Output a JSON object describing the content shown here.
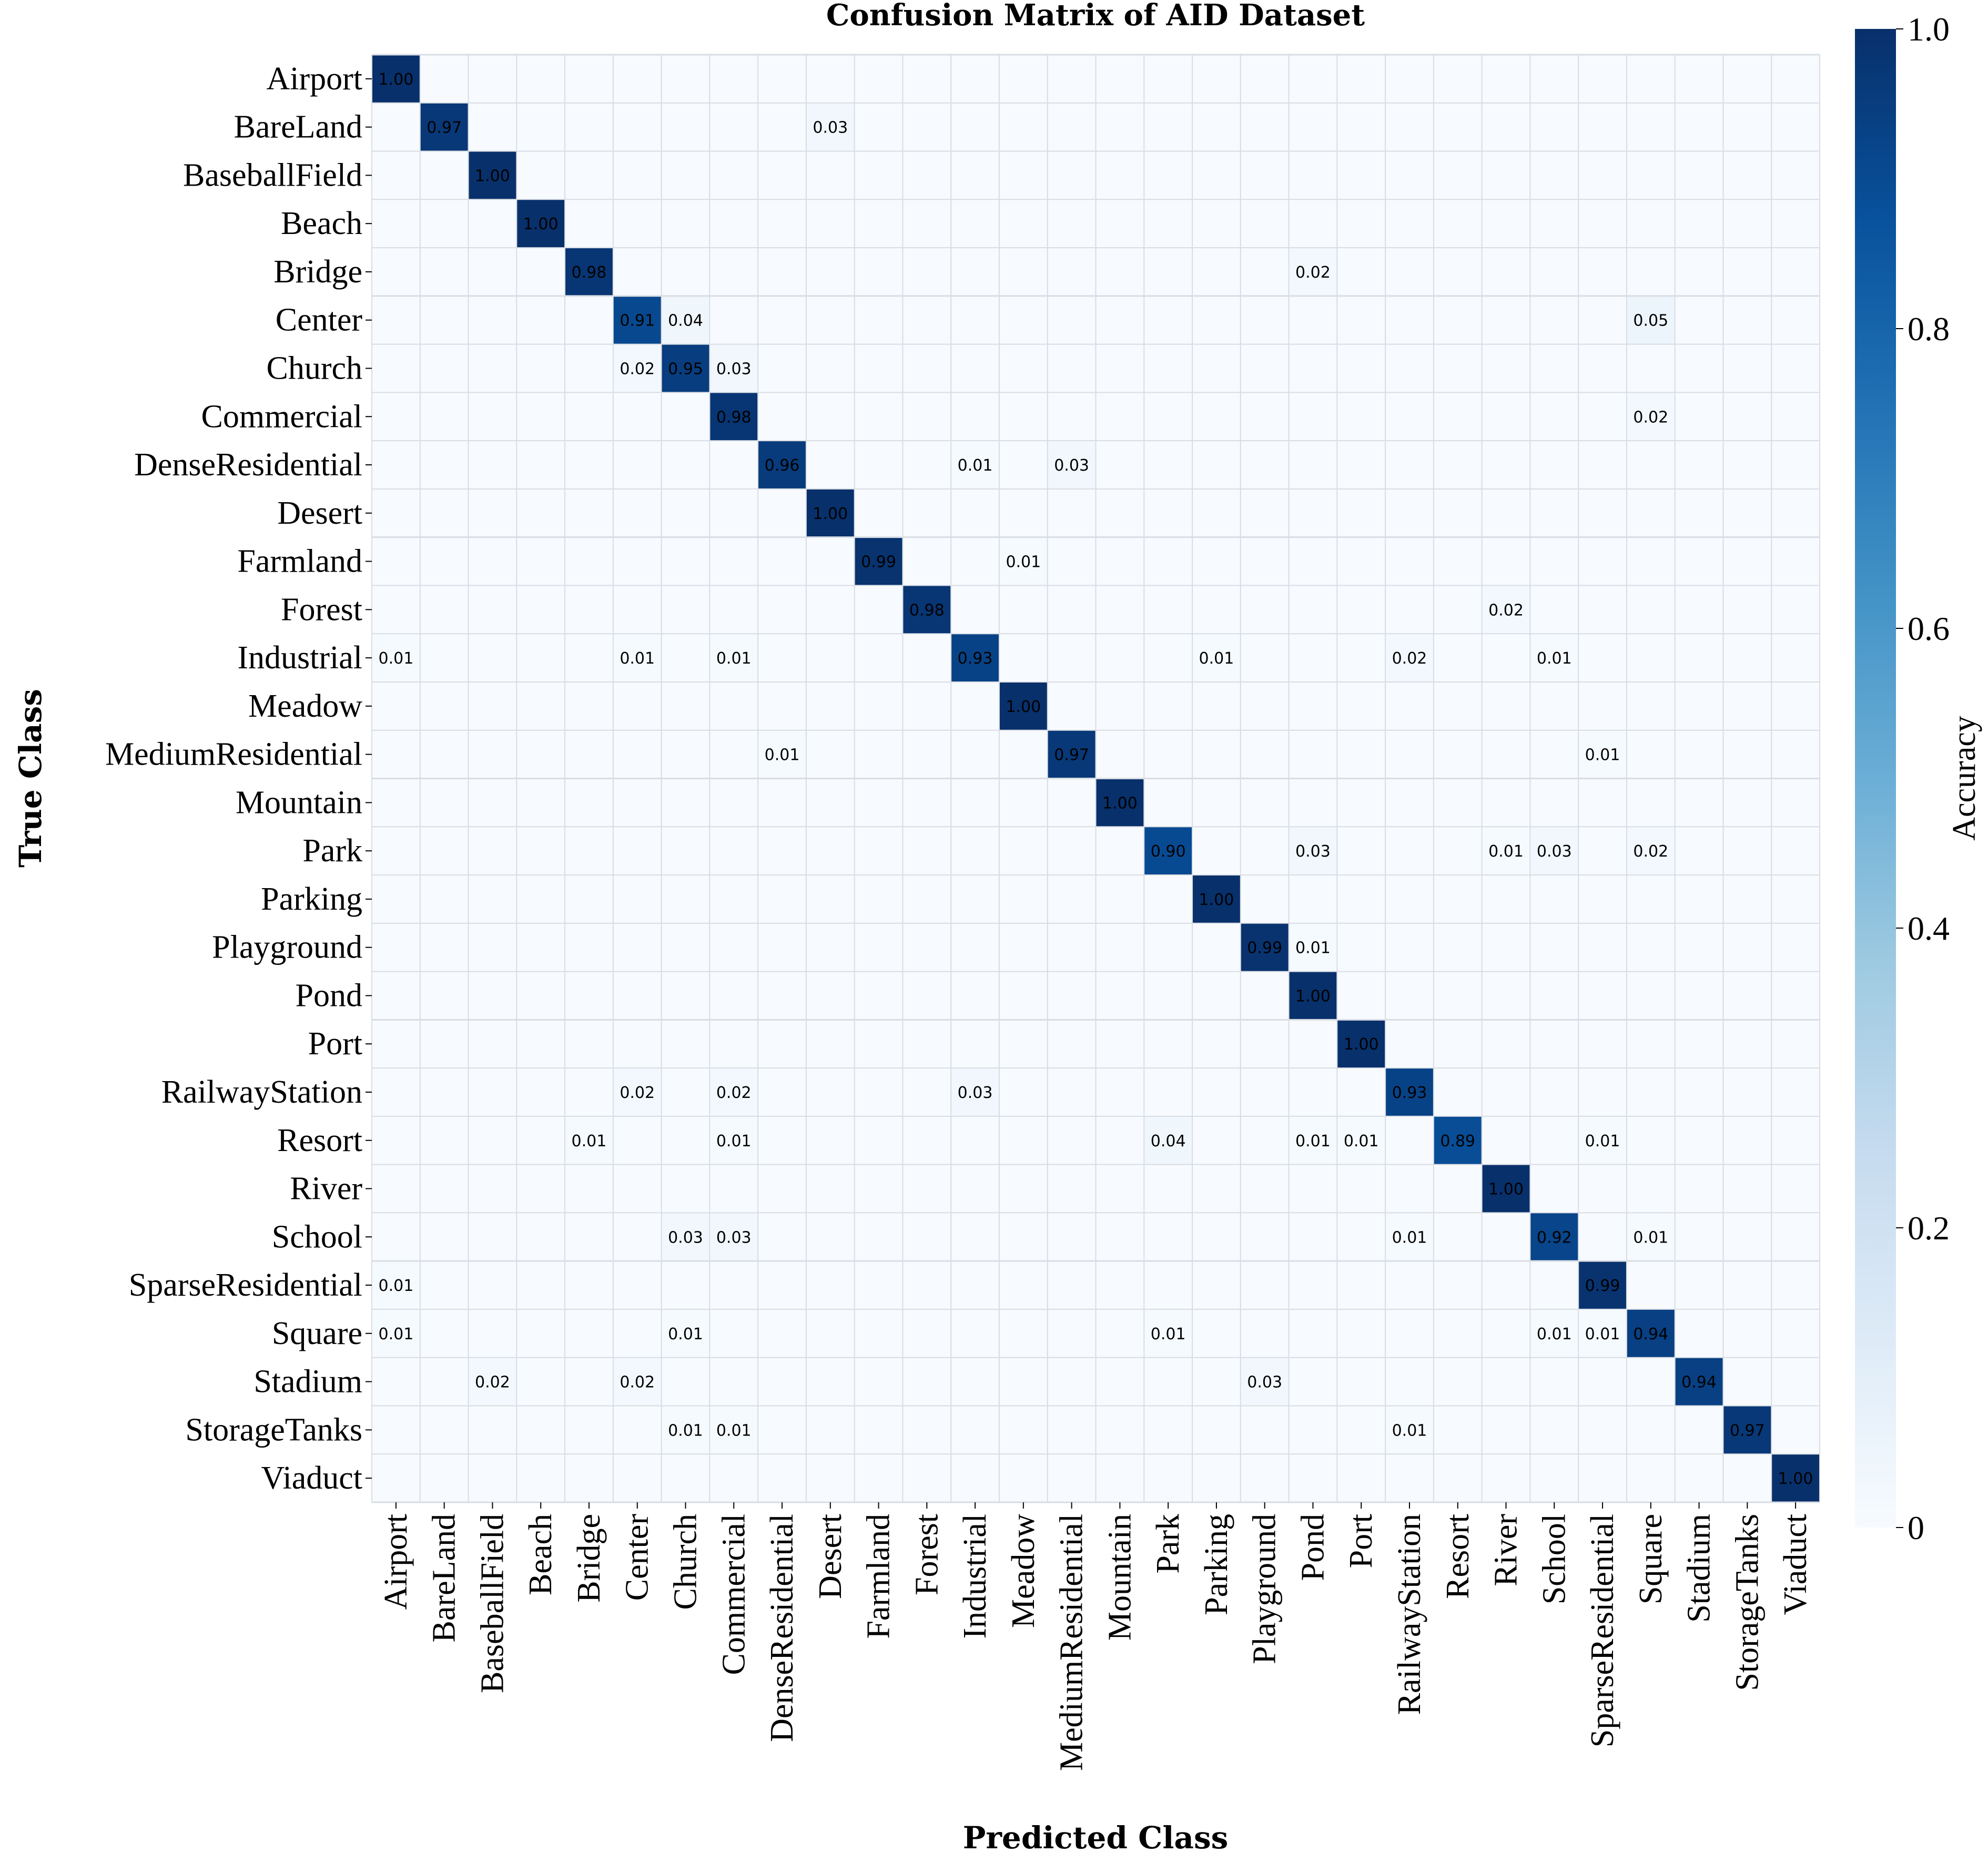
{
  "chart_data": {
    "type": "heatmap",
    "title": "Confusion Matrix of AID Dataset",
    "xlabel": "Predicted Class",
    "ylabel": "True Class",
    "colorbar": {
      "label": "Accuracy",
      "range": [
        0,
        1
      ],
      "ticks": [
        "0",
        "0.2",
        "0.4",
        "0.6",
        "0.8",
        "1.0"
      ],
      "tick_values": [
        0,
        0.2,
        0.4,
        0.6,
        0.8,
        1.0
      ],
      "colormap": "Blues",
      "colors": [
        "#f7fbff",
        "#deebf7",
        "#c6dbef",
        "#9ecae1",
        "#6baed6",
        "#4292c6",
        "#2171b5",
        "#08519c",
        "#08306b"
      ]
    },
    "grid": true,
    "classes": [
      "Airport",
      "BareLand",
      "BaseballField",
      "Beach",
      "Bridge",
      "Center",
      "Church",
      "Commercial",
      "DenseResidential",
      "Desert",
      "Farmland",
      "Forest",
      "Industrial",
      "Meadow",
      "MediumResidential",
      "Mountain",
      "Park",
      "Parking",
      "Playground",
      "Pond",
      "Port",
      "RailwayStation",
      "Resort",
      "River",
      "School",
      "SparseResidential",
      "Square",
      "Stadium",
      "StorageTanks",
      "Viaduct"
    ],
    "cells": [
      {
        "row": 0,
        "col": 0,
        "value": 1.0,
        "label": "1.00"
      },
      {
        "row": 1,
        "col": 1,
        "value": 0.97,
        "label": "0.97"
      },
      {
        "row": 1,
        "col": 9,
        "value": 0.03,
        "label": "0.03"
      },
      {
        "row": 2,
        "col": 2,
        "value": 1.0,
        "label": "1.00"
      },
      {
        "row": 3,
        "col": 3,
        "value": 1.0,
        "label": "1.00"
      },
      {
        "row": 4,
        "col": 4,
        "value": 0.98,
        "label": "0.98"
      },
      {
        "row": 4,
        "col": 19,
        "value": 0.02,
        "label": "0.02"
      },
      {
        "row": 5,
        "col": 5,
        "value": 0.91,
        "label": "0.91"
      },
      {
        "row": 5,
        "col": 6,
        "value": 0.04,
        "label": "0.04"
      },
      {
        "row": 5,
        "col": 26,
        "value": 0.05,
        "label": "0.05"
      },
      {
        "row": 6,
        "col": 5,
        "value": 0.02,
        "label": "0.02"
      },
      {
        "row": 6,
        "col": 6,
        "value": 0.95,
        "label": "0.95"
      },
      {
        "row": 6,
        "col": 7,
        "value": 0.03,
        "label": "0.03"
      },
      {
        "row": 7,
        "col": 7,
        "value": 0.98,
        "label": "0.98"
      },
      {
        "row": 7,
        "col": 26,
        "value": 0.02,
        "label": "0.02"
      },
      {
        "row": 8,
        "col": 8,
        "value": 0.96,
        "label": "0.96"
      },
      {
        "row": 8,
        "col": 12,
        "value": 0.01,
        "label": "0.01"
      },
      {
        "row": 8,
        "col": 14,
        "value": 0.03,
        "label": "0.03"
      },
      {
        "row": 9,
        "col": 9,
        "value": 1.0,
        "label": "1.00"
      },
      {
        "row": 10,
        "col": 10,
        "value": 0.99,
        "label": "0.99"
      },
      {
        "row": 10,
        "col": 13,
        "value": 0.01,
        "label": "0.01"
      },
      {
        "row": 11,
        "col": 11,
        "value": 0.98,
        "label": "0.98"
      },
      {
        "row": 11,
        "col": 23,
        "value": 0.02,
        "label": "0.02"
      },
      {
        "row": 12,
        "col": 0,
        "value": 0.01,
        "label": "0.01"
      },
      {
        "row": 12,
        "col": 5,
        "value": 0.01,
        "label": "0.01"
      },
      {
        "row": 12,
        "col": 7,
        "value": 0.01,
        "label": "0.01"
      },
      {
        "row": 12,
        "col": 12,
        "value": 0.93,
        "label": "0.93"
      },
      {
        "row": 12,
        "col": 17,
        "value": 0.01,
        "label": "0.01"
      },
      {
        "row": 12,
        "col": 21,
        "value": 0.02,
        "label": "0.02"
      },
      {
        "row": 12,
        "col": 24,
        "value": 0.01,
        "label": "0.01"
      },
      {
        "row": 13,
        "col": 13,
        "value": 1.0,
        "label": "1.00"
      },
      {
        "row": 14,
        "col": 8,
        "value": 0.01,
        "label": "0.01"
      },
      {
        "row": 14,
        "col": 14,
        "value": 0.97,
        "label": "0.97"
      },
      {
        "row": 14,
        "col": 25,
        "value": 0.01,
        "label": "0.01"
      },
      {
        "row": 15,
        "col": 15,
        "value": 1.0,
        "label": "1.00"
      },
      {
        "row": 16,
        "col": 16,
        "value": 0.9,
        "label": "0.90"
      },
      {
        "row": 16,
        "col": 19,
        "value": 0.03,
        "label": "0.03"
      },
      {
        "row": 16,
        "col": 23,
        "value": 0.01,
        "label": "0.01"
      },
      {
        "row": 16,
        "col": 24,
        "value": 0.03,
        "label": "0.03"
      },
      {
        "row": 16,
        "col": 26,
        "value": 0.02,
        "label": "0.02"
      },
      {
        "row": 17,
        "col": 17,
        "value": 1.0,
        "label": "1.00"
      },
      {
        "row": 18,
        "col": 18,
        "value": 0.99,
        "label": "0.99"
      },
      {
        "row": 18,
        "col": 19,
        "value": 0.01,
        "label": "0.01"
      },
      {
        "row": 19,
        "col": 19,
        "value": 1.0,
        "label": "1.00"
      },
      {
        "row": 20,
        "col": 20,
        "value": 1.0,
        "label": "1.00"
      },
      {
        "row": 21,
        "col": 5,
        "value": 0.02,
        "label": "0.02"
      },
      {
        "row": 21,
        "col": 7,
        "value": 0.02,
        "label": "0.02"
      },
      {
        "row": 21,
        "col": 12,
        "value": 0.03,
        "label": "0.03"
      },
      {
        "row": 21,
        "col": 21,
        "value": 0.93,
        "label": "0.93"
      },
      {
        "row": 22,
        "col": 4,
        "value": 0.01,
        "label": "0.01"
      },
      {
        "row": 22,
        "col": 7,
        "value": 0.01,
        "label": "0.01"
      },
      {
        "row": 22,
        "col": 16,
        "value": 0.04,
        "label": "0.04"
      },
      {
        "row": 22,
        "col": 19,
        "value": 0.01,
        "label": "0.01"
      },
      {
        "row": 22,
        "col": 20,
        "value": 0.01,
        "label": "0.01"
      },
      {
        "row": 22,
        "col": 22,
        "value": 0.89,
        "label": "0.89"
      },
      {
        "row": 22,
        "col": 25,
        "value": 0.01,
        "label": "0.01"
      },
      {
        "row": 23,
        "col": 23,
        "value": 1.0,
        "label": "1.00"
      },
      {
        "row": 24,
        "col": 6,
        "value": 0.03,
        "label": "0.03"
      },
      {
        "row": 24,
        "col": 7,
        "value": 0.03,
        "label": "0.03"
      },
      {
        "row": 24,
        "col": 21,
        "value": 0.01,
        "label": "0.01"
      },
      {
        "row": 24,
        "col": 24,
        "value": 0.92,
        "label": "0.92"
      },
      {
        "row": 24,
        "col": 26,
        "value": 0.01,
        "label": "0.01"
      },
      {
        "row": 25,
        "col": 0,
        "value": 0.01,
        "label": "0.01"
      },
      {
        "row": 25,
        "col": 25,
        "value": 0.99,
        "label": "0.99"
      },
      {
        "row": 26,
        "col": 0,
        "value": 0.01,
        "label": "0.01"
      },
      {
        "row": 26,
        "col": 6,
        "value": 0.01,
        "label": "0.01"
      },
      {
        "row": 26,
        "col": 16,
        "value": 0.01,
        "label": "0.01"
      },
      {
        "row": 26,
        "col": 24,
        "value": 0.01,
        "label": "0.01"
      },
      {
        "row": 26,
        "col": 25,
        "value": 0.01,
        "label": "0.01"
      },
      {
        "row": 26,
        "col": 26,
        "value": 0.94,
        "label": "0.94"
      },
      {
        "row": 27,
        "col": 2,
        "value": 0.02,
        "label": "0.02"
      },
      {
        "row": 27,
        "col": 5,
        "value": 0.02,
        "label": "0.02"
      },
      {
        "row": 27,
        "col": 18,
        "value": 0.03,
        "label": "0.03"
      },
      {
        "row": 27,
        "col": 27,
        "value": 0.94,
        "label": "0.94"
      },
      {
        "row": 28,
        "col": 6,
        "value": 0.01,
        "label": "0.01"
      },
      {
        "row": 28,
        "col": 7,
        "value": 0.01,
        "label": "0.01"
      },
      {
        "row": 28,
        "col": 21,
        "value": 0.01,
        "label": "0.01"
      },
      {
        "row": 28,
        "col": 28,
        "value": 0.97,
        "label": "0.97"
      },
      {
        "row": 29,
        "col": 29,
        "value": 1.0,
        "label": "1.00"
      }
    ]
  }
}
